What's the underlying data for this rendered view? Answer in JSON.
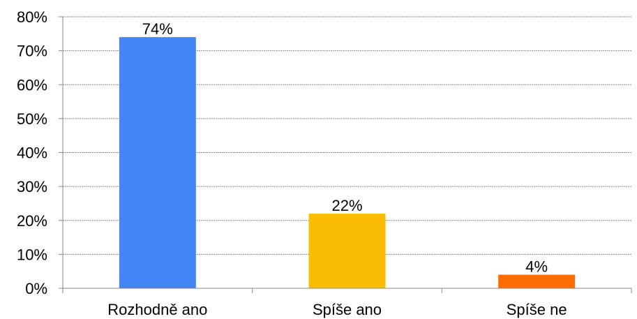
{
  "chart_data": {
    "type": "bar",
    "categories": [
      "Rozhodně ano",
      "Spíše ano",
      "Spíše ne"
    ],
    "values": [
      74,
      22,
      4
    ],
    "value_labels": [
      "74%",
      "22%",
      "4%"
    ],
    "colors": [
      "#4285F4",
      "#FBBC04",
      "#FF6D01"
    ],
    "ylim": [
      0,
      80
    ],
    "yticks": [
      0,
      10,
      20,
      30,
      40,
      50,
      60,
      70,
      80
    ],
    "ytick_labels": [
      "0%",
      "10%",
      "20%",
      "30%",
      "40%",
      "50%",
      "60%",
      "70%",
      "80%"
    ],
    "grid": true,
    "legend": "none"
  }
}
